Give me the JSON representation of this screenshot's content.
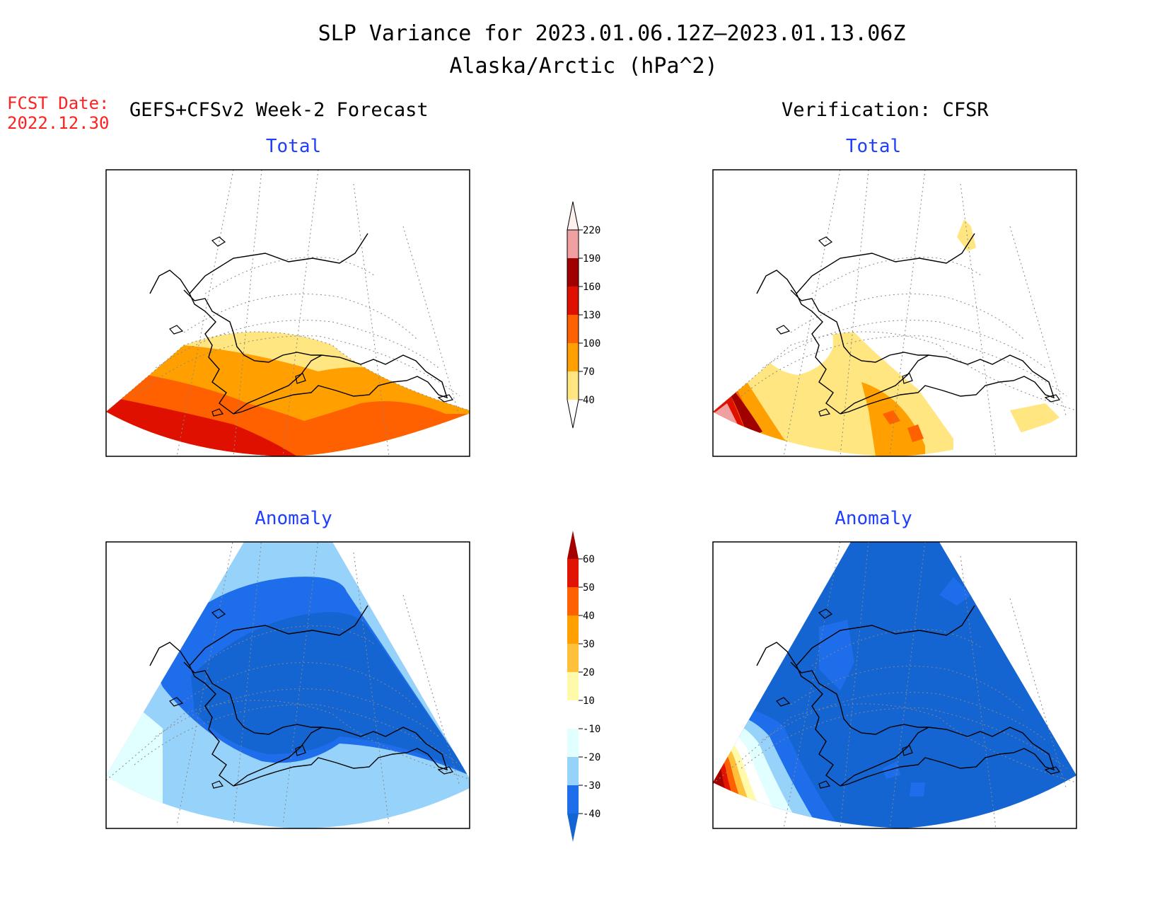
{
  "title": {
    "line1": "SLP Variance for 2023.01.06.12Z–2023.01.13.06Z",
    "line2": "Alaska/Arctic (hPa^2)"
  },
  "fcst_date": {
    "label": "FCST Date:",
    "value": "2022.12.30"
  },
  "left_header": "GEFS+CFSv2 Week-2 Forecast",
  "right_header": "Verification: CFSR",
  "panels": {
    "top_left_title": "Total",
    "top_right_title": "Total",
    "bottom_left_title": "Anomaly",
    "bottom_right_title": "Anomaly"
  },
  "colorbars": {
    "total": {
      "levels": [
        "40",
        "70",
        "100",
        "130",
        "160",
        "190",
        "220"
      ],
      "colors": [
        "#ffe680",
        "#ffa000",
        "#ff6000",
        "#e01000",
        "#a00000",
        "#f0a0a0",
        "#fff0f0"
      ]
    },
    "anomaly": {
      "levels": [
        "-40",
        "-30",
        "-20",
        "-10",
        "10",
        "20",
        "30",
        "40",
        "50",
        "60"
      ],
      "colors": [
        "#1464d2",
        "#1e6eeb",
        "#96d2fa",
        "#e1ffff",
        "#ffffff",
        "#fffaaa",
        "#ffc03c",
        "#ffa000",
        "#ff6000",
        "#e01400",
        "#a50000"
      ]
    }
  }
}
